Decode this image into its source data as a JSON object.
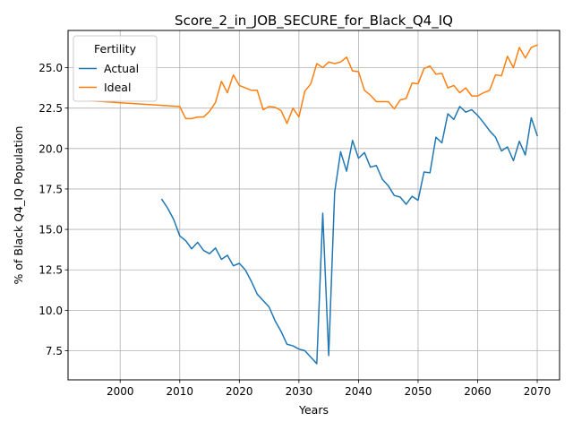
{
  "chart_data": {
    "type": "line",
    "title": "Score_2_in_JOB_SECURE_for_Black_Q4_IQ",
    "xlabel": "Years",
    "ylabel": "% of Black Q4_IQ Population",
    "xlim": [
      1991.25,
      2073.75
    ],
    "ylim": [
      5.7,
      27.3
    ],
    "xticks": [
      2000,
      2010,
      2020,
      2030,
      2040,
      2050,
      2060,
      2070
    ],
    "yticks": [
      7.5,
      10.0,
      12.5,
      15.0,
      17.5,
      20.0,
      22.5,
      25.0
    ],
    "ytick_labels": [
      "7.5",
      "10.0",
      "12.5",
      "15.0",
      "17.5",
      "20.0",
      "22.5",
      "25.0"
    ],
    "grid": true,
    "legend": {
      "title": "Fertility",
      "placement": "top-left"
    },
    "series": [
      {
        "name": "Actual",
        "color": "#1f77b4",
        "x": [
          2007,
          2008,
          2009,
          2010,
          2011,
          2012,
          2013,
          2014,
          2015,
          2016,
          2017,
          2018,
          2019,
          2020,
          2021,
          2022,
          2023,
          2024,
          2025,
          2026,
          2027,
          2028,
          2029,
          2030,
          2031,
          2032,
          2033,
          2034,
          2035,
          2036,
          2037,
          2038,
          2039,
          2040,
          2041,
          2042,
          2043,
          2044,
          2045,
          2046,
          2047,
          2048,
          2049,
          2050,
          2051,
          2052,
          2053,
          2054,
          2055,
          2056,
          2057,
          2058,
          2059,
          2060,
          2061,
          2062,
          2063,
          2064,
          2065,
          2066,
          2067,
          2068,
          2069,
          2070
        ],
        "y": [
          16.85,
          16.3,
          15.6,
          14.6,
          14.3,
          13.8,
          14.2,
          13.7,
          13.5,
          13.85,
          13.15,
          13.4,
          12.75,
          12.9,
          12.5,
          11.8,
          11.0,
          10.6,
          10.2,
          9.35,
          8.7,
          7.9,
          7.8,
          7.6,
          7.5,
          7.1,
          6.7,
          16.0,
          7.2,
          17.3,
          19.8,
          18.6,
          20.5,
          19.4,
          19.75,
          18.85,
          18.95,
          18.1,
          17.7,
          17.1,
          17.0,
          16.55,
          17.05,
          16.8,
          18.55,
          18.5,
          20.7,
          20.35,
          22.15,
          21.8,
          22.6,
          22.25,
          22.4,
          22.05,
          21.6,
          21.1,
          20.7,
          19.85,
          20.1,
          19.25,
          20.45,
          19.6,
          21.9,
          20.8
        ]
      },
      {
        "name": "Ideal",
        "color": "#ff7f0e",
        "x": [
          1995,
          2010,
          2011,
          2012,
          2013,
          2014,
          2015,
          2016,
          2017,
          2018,
          2019,
          2020,
          2021,
          2022,
          2023,
          2024,
          2025,
          2026,
          2027,
          2028,
          2029,
          2030,
          2031,
          2032,
          2033,
          2034,
          2035,
          2036,
          2037,
          2038,
          2039,
          2040,
          2041,
          2042,
          2043,
          2044,
          2045,
          2046,
          2047,
          2048,
          2049,
          2050,
          2051,
          2052,
          2053,
          2054,
          2055,
          2056,
          2057,
          2058,
          2059,
          2060,
          2061,
          2062,
          2063,
          2064,
          2065,
          2066,
          2067,
          2068,
          2069,
          2070
        ],
        "y": [
          22.95,
          22.6,
          21.85,
          21.85,
          21.95,
          21.95,
          22.3,
          22.85,
          24.15,
          23.45,
          24.55,
          23.9,
          23.75,
          23.6,
          23.6,
          22.4,
          22.6,
          22.55,
          22.35,
          21.55,
          22.5,
          21.95,
          23.55,
          24.0,
          25.25,
          25.0,
          25.35,
          25.25,
          25.35,
          25.65,
          24.8,
          24.75,
          23.6,
          23.3,
          22.9,
          22.9,
          22.9,
          22.45,
          23.0,
          23.1,
          24.05,
          24.0,
          24.95,
          25.1,
          24.6,
          24.65,
          23.75,
          23.9,
          23.45,
          23.75,
          23.25,
          23.25,
          23.45,
          23.6,
          24.55,
          24.5,
          25.7,
          25.0,
          26.25,
          25.6,
          26.25,
          26.4
        ]
      }
    ]
  }
}
